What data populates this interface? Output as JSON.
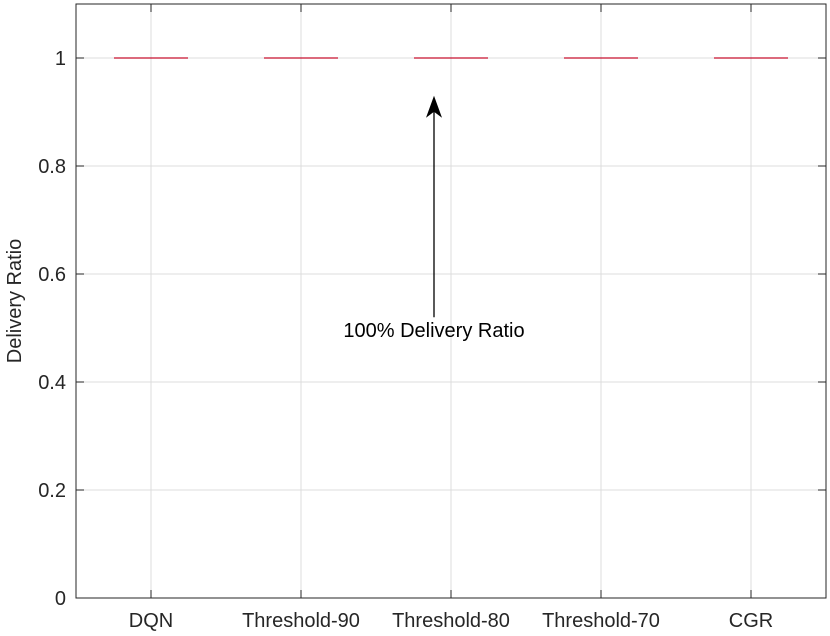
{
  "chart_data": {
    "type": "box",
    "categories": [
      "DQN",
      "Threshold-90",
      "Threshold-80",
      "Threshold-70",
      "CGR"
    ],
    "series": [
      {
        "values": [
          1,
          1,
          1,
          1,
          1
        ]
      }
    ],
    "title": "",
    "xlabel": "",
    "ylabel": "Delivery Ratio",
    "ylim": [
      0,
      1.1
    ],
    "yticks": [
      0,
      0.2,
      0.4,
      0.6,
      0.8,
      1
    ],
    "ytick_labels": [
      "0",
      "0.2",
      "0.4",
      "0.6",
      "0.8",
      "1"
    ],
    "grid": true,
    "median_color": "#c8102e",
    "annotation": {
      "text": "100% Delivery Ratio",
      "category": "Threshold-80",
      "arrow_tip_y": 0.93,
      "arrow_tail_y": 0.52
    }
  }
}
